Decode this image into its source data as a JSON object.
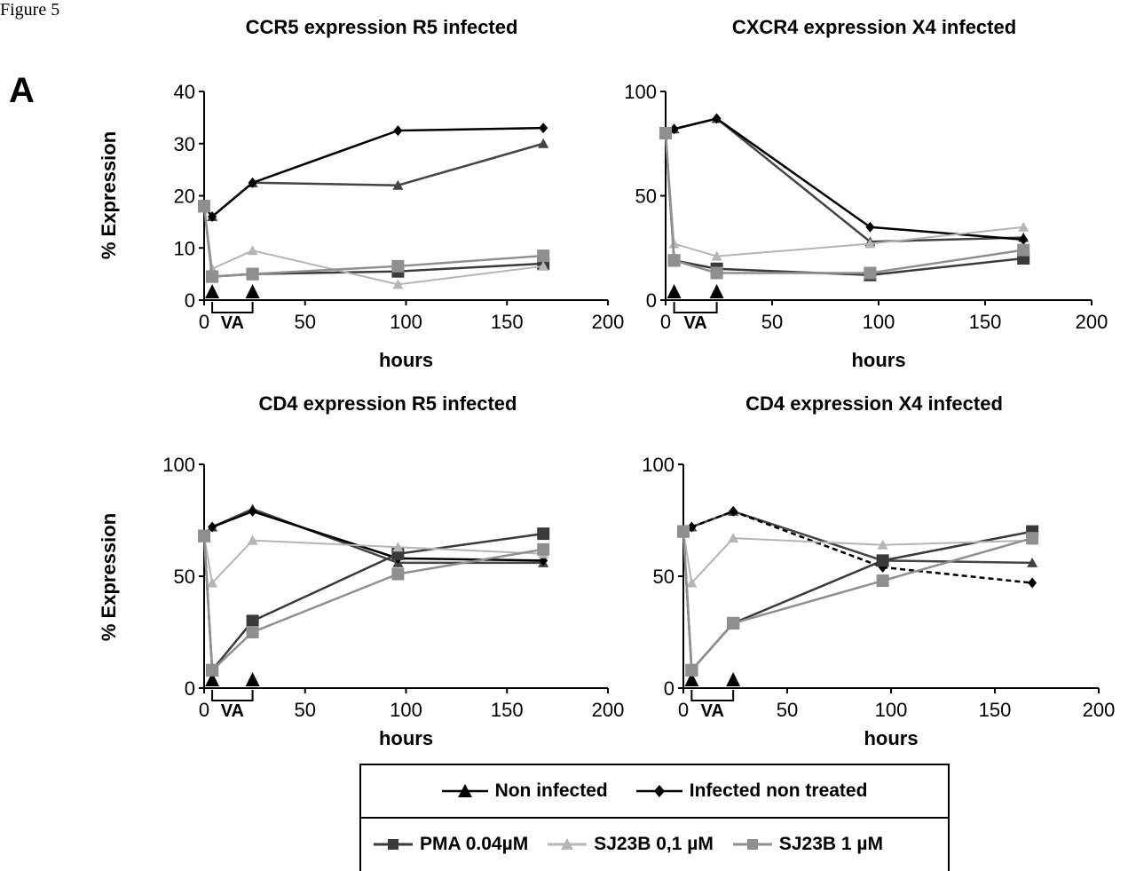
{
  "figure_label": "Figure 5",
  "panel_letter": "A",
  "chart_data": [
    {
      "type": "line",
      "title": "CCR5 expression R5 infected",
      "xlabel": "hours",
      "ylabel": "% Expression",
      "xlim": [
        0,
        200
      ],
      "ylim": [
        0,
        40
      ],
      "xticks": [
        0,
        50,
        100,
        150,
        200
      ],
      "yticks": [
        0,
        10,
        20,
        30,
        40
      ],
      "treatment_label": "VA",
      "treatment_marks": [
        4,
        24
      ],
      "series": [
        {
          "name": "Non infected",
          "color": "#444444",
          "marker": "triangle",
          "dashed": false,
          "points": [
            [
              0,
              18
            ],
            [
              4,
              16
            ],
            [
              24,
              22.5
            ],
            [
              96,
              22
            ],
            [
              168,
              30
            ]
          ]
        },
        {
          "name": "Infected non treated",
          "color": "#000000",
          "marker": "diamond",
          "dashed": false,
          "points": [
            [
              0,
              18
            ],
            [
              4,
              16
            ],
            [
              24,
              22.5
            ],
            [
              96,
              32.5
            ],
            [
              168,
              33
            ]
          ]
        },
        {
          "name": "PMA 0.04µM",
          "color": "#3a3a3a",
          "marker": "square",
          "dashed": false,
          "points": [
            [
              0,
              18
            ],
            [
              4,
              4.5
            ],
            [
              24,
              5
            ],
            [
              96,
              5.5
            ],
            [
              168,
              7
            ]
          ]
        },
        {
          "name": "SJ23B 0,1 µM",
          "color": "#b5b5b5",
          "marker": "triangle",
          "dashed": false,
          "points": [
            [
              0,
              18
            ],
            [
              4,
              6
            ],
            [
              24,
              9.5
            ],
            [
              96,
              3
            ],
            [
              168,
              6.5
            ]
          ]
        },
        {
          "name": "SJ23B 1 µM",
          "color": "#8f8f8f",
          "marker": "square",
          "dashed": false,
          "points": [
            [
              0,
              18
            ],
            [
              4,
              4.5
            ],
            [
              24,
              5
            ],
            [
              96,
              6.5
            ],
            [
              168,
              8.5
            ]
          ]
        }
      ]
    },
    {
      "type": "line",
      "title": "CXCR4 expression X4 infected",
      "xlabel": "hours",
      "ylabel": "",
      "xlim": [
        0,
        200
      ],
      "ylim": [
        0,
        100
      ],
      "xticks": [
        0,
        50,
        100,
        150,
        200
      ],
      "yticks": [
        0,
        50,
        100
      ],
      "treatment_label": "VA",
      "treatment_marks": [
        4,
        24
      ],
      "series": [
        {
          "name": "Non infected",
          "color": "#444444",
          "marker": "triangle",
          "dashed": false,
          "points": [
            [
              0,
              80
            ],
            [
              4,
              82
            ],
            [
              24,
              87
            ],
            [
              96,
              28
            ],
            [
              168,
              30
            ]
          ]
        },
        {
          "name": "Infected non treated",
          "color": "#000000",
          "marker": "diamond",
          "dashed": false,
          "points": [
            [
              0,
              80
            ],
            [
              4,
              82
            ],
            [
              24,
              87
            ],
            [
              96,
              35
            ],
            [
              168,
              29
            ]
          ]
        },
        {
          "name": "PMA 0.04µM",
          "color": "#3a3a3a",
          "marker": "square",
          "dashed": false,
          "points": [
            [
              0,
              80
            ],
            [
              4,
              19
            ],
            [
              24,
              15
            ],
            [
              96,
              12
            ],
            [
              168,
              20
            ]
          ]
        },
        {
          "name": "SJ23B 0,1 µM",
          "color": "#b5b5b5",
          "marker": "triangle",
          "dashed": false,
          "points": [
            [
              0,
              80
            ],
            [
              4,
              27
            ],
            [
              24,
              21
            ],
            [
              96,
              27
            ],
            [
              168,
              35
            ]
          ]
        },
        {
          "name": "SJ23B 1 µM",
          "color": "#8f8f8f",
          "marker": "square",
          "dashed": false,
          "points": [
            [
              0,
              80
            ],
            [
              4,
              19
            ],
            [
              24,
              13
            ],
            [
              96,
              13
            ],
            [
              168,
              24
            ]
          ]
        }
      ]
    },
    {
      "type": "line",
      "title": "CD4 expression R5 infected",
      "xlabel": "hours",
      "ylabel": "% Expression",
      "xlim": [
        0,
        200
      ],
      "ylim": [
        0,
        100
      ],
      "xticks": [
        0,
        50,
        100,
        150,
        200
      ],
      "yticks": [
        0,
        50,
        100
      ],
      "treatment_label": "VA",
      "treatment_marks": [
        4,
        24
      ],
      "series": [
        {
          "name": "Non infected",
          "color": "#444444",
          "marker": "triangle",
          "dashed": false,
          "points": [
            [
              0,
              68
            ],
            [
              4,
              72
            ],
            [
              24,
              80
            ],
            [
              96,
              56
            ],
            [
              168,
              56
            ]
          ]
        },
        {
          "name": "Infected non treated",
          "color": "#000000",
          "marker": "diamond",
          "dashed": false,
          "points": [
            [
              0,
              68
            ],
            [
              4,
              72
            ],
            [
              24,
              79
            ],
            [
              96,
              58
            ],
            [
              168,
              57
            ]
          ]
        },
        {
          "name": "PMA 0.04µM",
          "color": "#3a3a3a",
          "marker": "square",
          "dashed": false,
          "points": [
            [
              0,
              68
            ],
            [
              4,
              8
            ],
            [
              24,
              30
            ],
            [
              96,
              60
            ],
            [
              168,
              69
            ]
          ]
        },
        {
          "name": "SJ23B 0,1 µM",
          "color": "#b5b5b5",
          "marker": "triangle",
          "dashed": false,
          "points": [
            [
              0,
              68
            ],
            [
              4,
              47
            ],
            [
              24,
              66
            ],
            [
              96,
              63
            ],
            [
              168,
              60
            ]
          ]
        },
        {
          "name": "SJ23B 1 µM",
          "color": "#8f8f8f",
          "marker": "square",
          "dashed": false,
          "points": [
            [
              0,
              68
            ],
            [
              4,
              8
            ],
            [
              24,
              25
            ],
            [
              96,
              51
            ],
            [
              168,
              62
            ]
          ]
        }
      ]
    },
    {
      "type": "line",
      "title": "CD4 expression X4 infected",
      "xlabel": "hours",
      "ylabel": "",
      "xlim": [
        0,
        200
      ],
      "ylim": [
        0,
        100
      ],
      "xticks": [
        0,
        50,
        100,
        150,
        200
      ],
      "yticks": [
        0,
        50,
        100
      ],
      "treatment_label": "VA",
      "treatment_marks": [
        4,
        24
      ],
      "series": [
        {
          "name": "Non infected",
          "color": "#444444",
          "marker": "triangle",
          "dashed": false,
          "points": [
            [
              0,
              70
            ],
            [
              4,
              72
            ],
            [
              24,
              79
            ],
            [
              96,
              57
            ],
            [
              168,
              56
            ]
          ]
        },
        {
          "name": "Infected non treated",
          "color": "#000000",
          "marker": "diamond",
          "dashed": true,
          "points": [
            [
              0,
              70
            ],
            [
              4,
              72
            ],
            [
              24,
              79
            ],
            [
              96,
              54
            ],
            [
              168,
              47
            ]
          ]
        },
        {
          "name": "PMA 0.04µM",
          "color": "#3a3a3a",
          "marker": "square",
          "dashed": false,
          "points": [
            [
              0,
              70
            ],
            [
              4,
              8
            ],
            [
              24,
              29
            ],
            [
              96,
              57
            ],
            [
              168,
              70
            ]
          ]
        },
        {
          "name": "SJ23B 0,1 µM",
          "color": "#b5b5b5",
          "marker": "triangle",
          "dashed": false,
          "points": [
            [
              0,
              70
            ],
            [
              4,
              47
            ],
            [
              24,
              67
            ],
            [
              96,
              64
            ],
            [
              168,
              66
            ]
          ]
        },
        {
          "name": "SJ23B 1 µM",
          "color": "#8f8f8f",
          "marker": "square",
          "dashed": false,
          "points": [
            [
              0,
              70
            ],
            [
              4,
              8
            ],
            [
              24,
              29
            ],
            [
              96,
              48
            ],
            [
              168,
              67
            ]
          ]
        }
      ]
    }
  ],
  "legend": {
    "row1": [
      {
        "label": "Non infected",
        "marker": "triangle",
        "color": "#000000"
      },
      {
        "label": "Infected non treated",
        "marker": "diamond",
        "color": "#000000"
      }
    ],
    "row2": [
      {
        "label": "PMA 0.04µM",
        "marker": "square",
        "color": "#3a3a3a"
      },
      {
        "label": "SJ23B 0,1 µM",
        "marker": "triangle",
        "color": "#b5b5b5"
      },
      {
        "label": "SJ23B 1 µM",
        "marker": "square",
        "color": "#8f8f8f"
      }
    ]
  }
}
